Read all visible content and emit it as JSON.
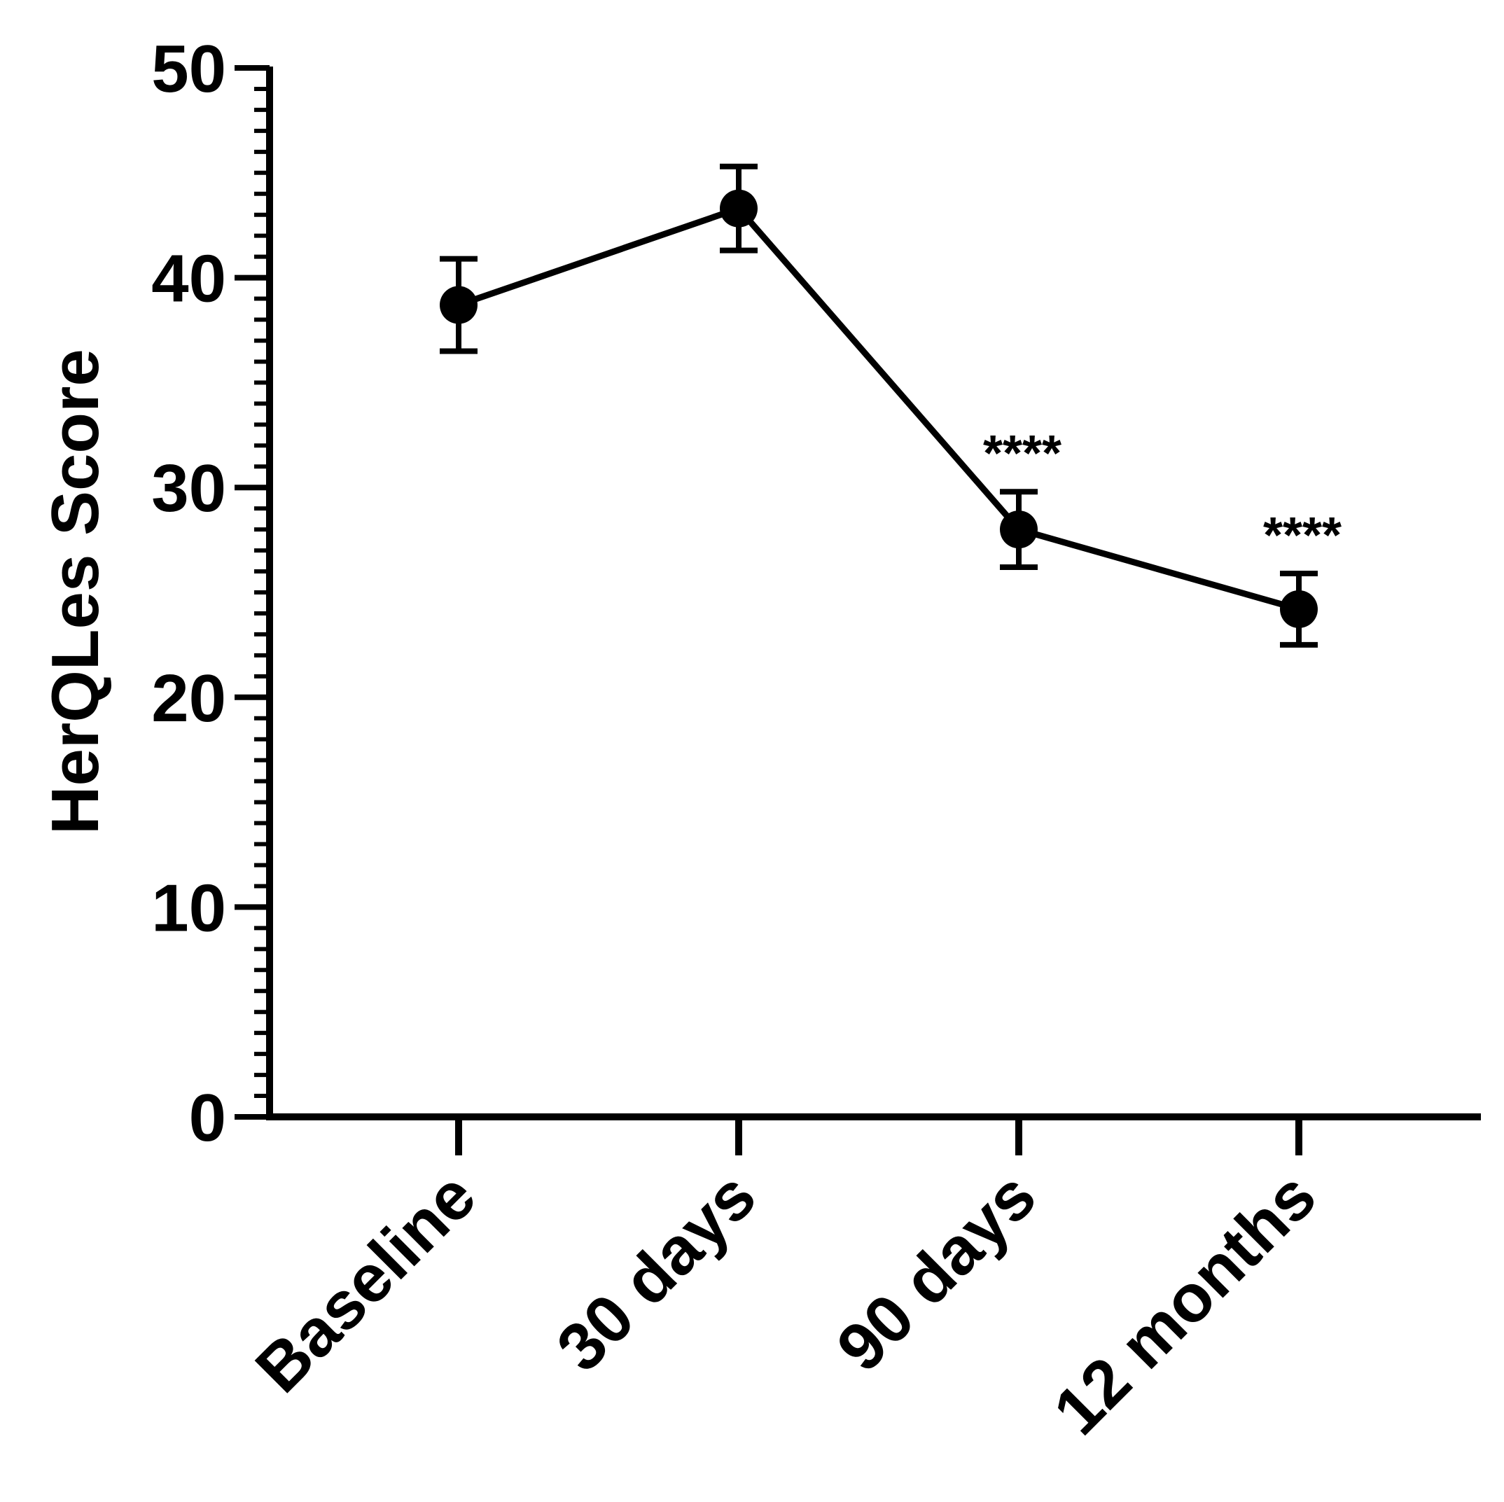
{
  "chart_data": {
    "type": "line",
    "title": "",
    "xlabel": "",
    "ylabel": "HerQLes Score",
    "categories": [
      "Baseline",
      "30 days",
      "90 days",
      "12 months"
    ],
    "series": [
      {
        "values": [
          38.7,
          43.3,
          28.0,
          24.2
        ],
        "error": [
          2.2,
          2.0,
          1.8,
          1.7
        ]
      }
    ],
    "annotations": [
      "",
      "",
      "****",
      "****"
    ],
    "ylim": [
      0,
      50
    ],
    "yticks": [
      "0",
      "10",
      "20",
      "30",
      "40",
      "50"
    ],
    "minor_ticks_per_major": 10,
    "grid": false,
    "legend": "none",
    "color": "#000000"
  }
}
